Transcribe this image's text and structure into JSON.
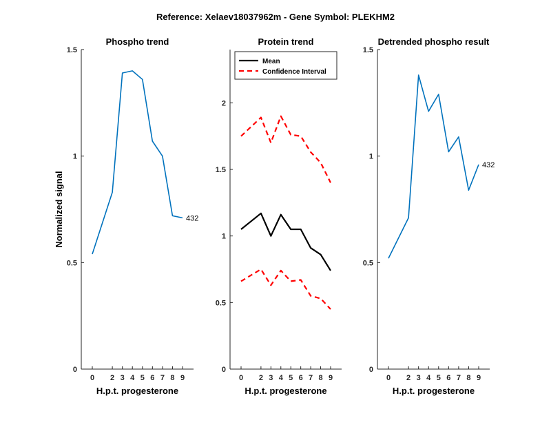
{
  "figure_title": "Reference:  Xelaev18037962m - Gene Symbol:  PLEKHM2",
  "colors": {
    "trend": "#0072BD",
    "mean": "#000000",
    "ci": "#FF0000",
    "axis": "#262626"
  },
  "chart_data": [
    {
      "type": "line",
      "title": "Phospho trend",
      "xlabel": "H.p.t. progesterone",
      "ylabel": "Normalized signal",
      "x": [
        0,
        2,
        3,
        4,
        5,
        6,
        7,
        8,
        9
      ],
      "xticks": [
        "0",
        "2",
        "3",
        "4",
        "5",
        "6",
        "7",
        "8",
        "9"
      ],
      "ylim": [
        0,
        1.5
      ],
      "yticks": [
        "0",
        "0.5",
        "1",
        "1.5"
      ],
      "series": [
        {
          "values": [
            0.54,
            0.83,
            1.39,
            1.4,
            1.36,
            1.07,
            1.0,
            0.72,
            0.71
          ]
        }
      ],
      "annotation": "432"
    },
    {
      "type": "line",
      "title": "Protein trend",
      "xlabel": "H.p.t. progesterone",
      "ylabel": "",
      "x": [
        0,
        2,
        3,
        4,
        5,
        6,
        7,
        8,
        9
      ],
      "xticks": [
        "0",
        "2",
        "3",
        "4",
        "5",
        "6",
        "7",
        "8",
        "9"
      ],
      "ylim": [
        0,
        2.4
      ],
      "yticks": [
        "0",
        "0.5",
        "1",
        "1.5",
        "2"
      ],
      "legend_position": "top-left",
      "series": [
        {
          "name": "Mean",
          "values": [
            1.05,
            1.17,
            1.0,
            1.16,
            1.05,
            1.05,
            0.91,
            0.86,
            0.74
          ]
        },
        {
          "name": "Confidence Interval",
          "values": [
            1.75,
            1.89,
            1.7,
            1.9,
            1.76,
            1.75,
            1.63,
            1.55,
            1.4
          ]
        },
        {
          "name": "",
          "values": [
            0.66,
            0.75,
            0.63,
            0.74,
            0.66,
            0.67,
            0.55,
            0.53,
            0.45
          ]
        }
      ]
    },
    {
      "type": "line",
      "title": "Detrended phospho result",
      "xlabel": "H.p.t. progesterone",
      "ylabel": "",
      "x": [
        0,
        2,
        3,
        4,
        5,
        6,
        7,
        8,
        9
      ],
      "xticks": [
        "0",
        "2",
        "3",
        "4",
        "5",
        "6",
        "7",
        "8",
        "9"
      ],
      "ylim": [
        0,
        1.5
      ],
      "yticks": [
        "0",
        "0.5",
        "1",
        "1.5"
      ],
      "series": [
        {
          "values": [
            0.52,
            0.71,
            1.38,
            1.21,
            1.29,
            1.02,
            1.09,
            0.84,
            0.96
          ]
        }
      ],
      "annotation": "432"
    }
  ]
}
